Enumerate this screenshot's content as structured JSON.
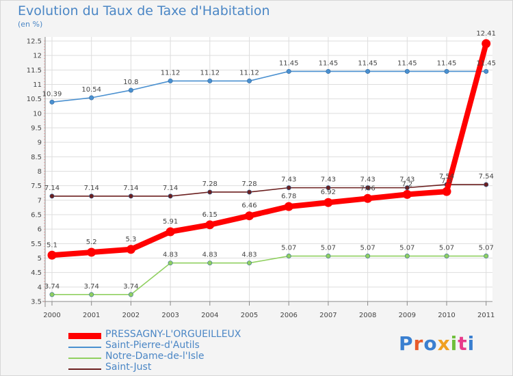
{
  "header": {
    "title": "Evolution du Taux de Taxe d'Habitation",
    "unit": "(en %)"
  },
  "logo": {
    "text": "Proxiti",
    "colors": [
      "#3a7fd0",
      "#e85a2a",
      "#3a7fd0",
      "#f0a020",
      "#6fbf3a",
      "#e83a8a",
      "#3a7fd0"
    ]
  },
  "chart_data": {
    "type": "line",
    "title": "Evolution du Taux de Taxe d'Habitation",
    "ylabel": "(en %)",
    "x": [
      "2000",
      "2001",
      "2002",
      "2003",
      "2004",
      "2005",
      "2006",
      "2007",
      "2008",
      "2009",
      "2010",
      "2011"
    ],
    "ylim": [
      3.5,
      12.5
    ],
    "yticks": [
      3.5,
      4,
      4.5,
      5,
      5.5,
      6,
      6.5,
      7,
      7.5,
      8,
      8.5,
      9,
      9.5,
      10,
      10.5,
      11,
      11.5,
      12,
      12.5
    ],
    "grid": true,
    "legend_position": "bottom",
    "series": [
      {
        "name": "PRESSAGNY-L'ORGUEILLEUX",
        "color": "#ff0000",
        "values": [
          5.1,
          5.2,
          5.3,
          5.91,
          6.15,
          6.46,
          6.78,
          6.92,
          7.06,
          7.2,
          7.3,
          12.41
        ],
        "labels": [
          "5.1",
          "5.2",
          "5.3",
          "5.91",
          "6.15",
          "6.46",
          "6.78",
          "6.92",
          "7.06",
          "7.2",
          "7.3",
          "12.41"
        ]
      },
      {
        "name": "Saint-Pierre-d'Autils",
        "color": "#4a90d0",
        "values": [
          10.39,
          10.54,
          10.8,
          11.12,
          11.12,
          11.12,
          11.45,
          11.45,
          11.45,
          11.45,
          11.45,
          11.45
        ],
        "labels": [
          "10.39",
          "10.54",
          "10.8",
          "11.12",
          "11.12",
          "11.12",
          "11.45",
          "11.45",
          "11.45",
          "11.45",
          "11.45",
          "11.45"
        ]
      },
      {
        "name": "Notre-Dame-de-l'Isle",
        "color": "#90d060",
        "values": [
          3.74,
          3.74,
          3.74,
          4.83,
          4.83,
          4.83,
          5.07,
          5.07,
          5.07,
          5.07,
          5.07,
          5.07
        ],
        "labels": [
          "3.74",
          "3.74",
          "3.74",
          "4.83",
          "4.83",
          "4.83",
          "5.07",
          "5.07",
          "5.07",
          "5.07",
          "5.07",
          "5.07"
        ]
      },
      {
        "name": "Saint-Just",
        "color": "#6b1f1f",
        "values": [
          7.14,
          7.14,
          7.14,
          7.14,
          7.28,
          7.28,
          7.43,
          7.43,
          7.43,
          7.43,
          7.54,
          7.54
        ],
        "labels": [
          "7.14",
          "7.14",
          "7.14",
          "7.14",
          "7.28",
          "7.28",
          "7.43",
          "7.43",
          "7.43",
          "7.43",
          "7.54",
          "7.54"
        ]
      }
    ]
  }
}
